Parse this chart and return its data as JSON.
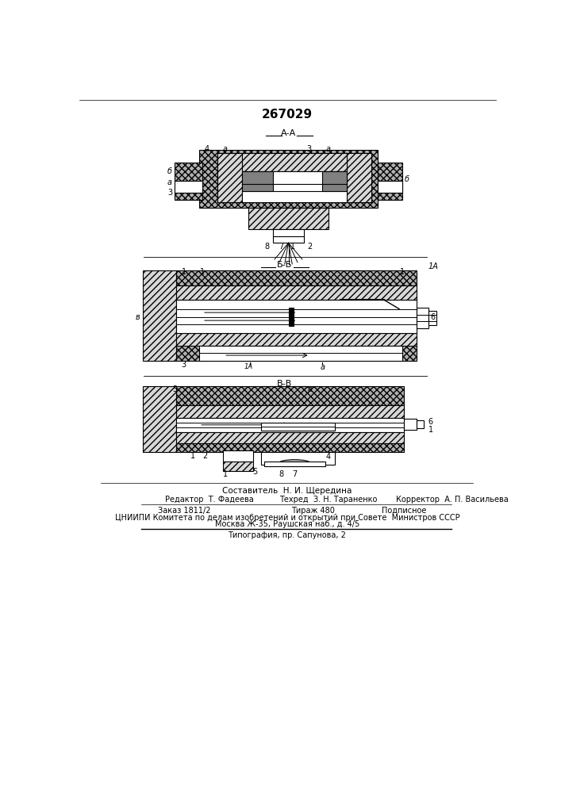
{
  "title_number": "267029",
  "bg": "#ffffff",
  "lc": "#000000",
  "footer_composer": "Составитель  Н. И. Щередина",
  "footer_row1": "Редактор  Т. Фадеева",
  "footer_row1b": "Техред  З. Н. Тараненко",
  "footer_row1c": "Корректор  А. П. Васильева",
  "footer_order": "Заказ 1811/2",
  "footer_tirazh": "Тираж 480",
  "footer_podp": "Подписное",
  "footer_cniip": "ЦНИИПИ Комитета по делам изобретений и открытий при Совете  Министров СССР",
  "footer_moscow": "Москва Ж-35, Раушская наб., д. 4/5",
  "footer_typo": "Типография, пр. Сапунова, 2"
}
